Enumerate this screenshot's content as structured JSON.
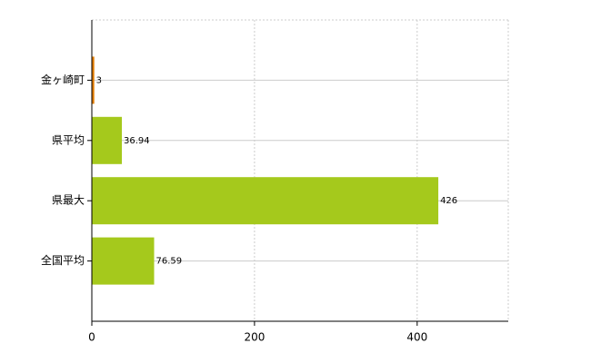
{
  "chart_data": {
    "type": "barh",
    "categories": [
      "金ヶ崎町",
      "県平均",
      "県最大",
      "全国平均"
    ],
    "values": [
      3,
      36.94,
      426,
      76.59
    ],
    "colors": [
      "#e07b00",
      "#a5c91c",
      "#a5c91c",
      "#a5c91c"
    ],
    "xlim": [
      0,
      512
    ],
    "xticks": [
      0,
      200,
      400
    ],
    "grid": true
  }
}
